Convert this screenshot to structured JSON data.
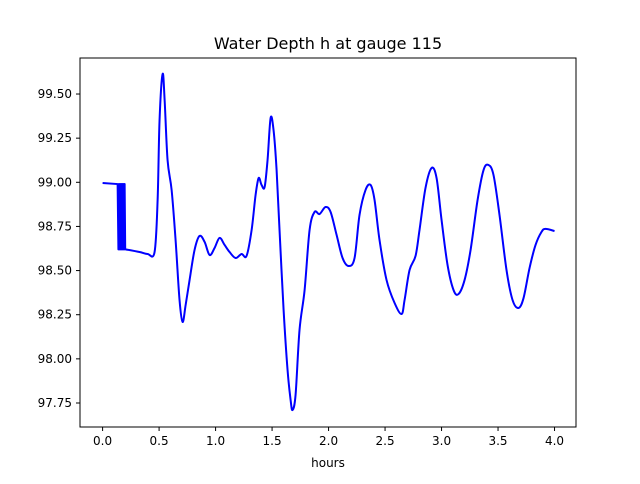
{
  "chart_data": {
    "type": "line",
    "title": "Water Depth h at gauge 115",
    "xlabel": "hours",
    "ylabel": "",
    "xlim": [
      -0.2,
      4.19
    ],
    "ylim": [
      97.614,
      99.704
    ],
    "grid": false,
    "xticks": [
      "0.0",
      "0.5",
      "1.0",
      "1.5",
      "2.0",
      "2.5",
      "3.0",
      "3.5",
      "4.0"
    ],
    "yticks": [
      "97.75",
      "98.00",
      "98.25",
      "98.50",
      "98.75",
      "99.00",
      "99.25",
      "99.50"
    ],
    "series": [
      {
        "name": "h",
        "color": "#0000ff",
        "x": [
          0,
          0.133,
          0.14,
          0.145,
          0.15,
          0.155,
          0.16,
          0.165,
          0.17,
          0.175,
          0.18,
          0.185,
          0.19,
          0.195,
          0.2,
          0.204,
          0.327,
          0.398,
          0.46,
          0.487,
          0.504,
          0.531,
          0.549,
          0.575,
          0.611,
          0.646,
          0.681,
          0.708,
          0.735,
          0.77,
          0.814,
          0.858,
          0.903,
          0.947,
          0.991,
          1.035,
          1.08,
          1.124,
          1.177,
          1.23,
          1.274,
          1.319,
          1.354,
          1.381,
          1.407,
          1.434,
          1.46,
          1.487,
          1.513,
          1.54,
          1.566,
          1.602,
          1.637,
          1.664,
          1.681,
          1.708,
          1.743,
          1.788,
          1.832,
          1.876,
          1.92,
          1.973,
          2.018,
          2.071,
          2.124,
          2.177,
          2.23,
          2.274,
          2.327,
          2.372,
          2.407,
          2.451,
          2.513,
          2.584,
          2.646,
          2.673,
          2.717,
          2.77,
          2.805,
          2.858,
          2.912,
          2.956,
          3.0,
          3.053,
          3.106,
          3.15,
          3.204,
          3.257,
          3.319,
          3.372,
          3.416,
          3.46,
          3.513,
          3.575,
          3.628,
          3.681,
          3.726,
          3.779,
          3.832,
          3.885,
          3.92,
          4.0
        ],
        "y": [
          98.996,
          98.99,
          98.62,
          98.99,
          98.62,
          98.99,
          98.62,
          98.99,
          98.62,
          98.99,
          98.62,
          98.99,
          98.62,
          98.99,
          98.62,
          98.62,
          98.605,
          98.594,
          98.605,
          98.9,
          99.35,
          99.613,
          99.466,
          99.126,
          98.956,
          98.673,
          98.333,
          98.209,
          98.305,
          98.447,
          98.617,
          98.696,
          98.662,
          98.588,
          98.628,
          98.685,
          98.645,
          98.605,
          98.571,
          98.594,
          98.583,
          98.73,
          98.928,
          99.024,
          98.985,
          98.973,
          99.126,
          99.364,
          99.296,
          99.07,
          98.73,
          98.277,
          97.937,
          97.767,
          97.71,
          97.796,
          98.164,
          98.39,
          98.73,
          98.832,
          98.82,
          98.86,
          98.832,
          98.702,
          98.571,
          98.526,
          98.571,
          98.815,
          98.956,
          98.985,
          98.9,
          98.673,
          98.447,
          98.317,
          98.254,
          98.334,
          98.503,
          98.583,
          98.73,
          98.968,
          99.081,
          99.024,
          98.787,
          98.532,
          98.39,
          98.367,
          98.447,
          98.617,
          98.9,
          99.07,
          99.098,
          99.041,
          98.815,
          98.503,
          98.334,
          98.288,
          98.345,
          98.515,
          98.645,
          98.719,
          98.736,
          98.724
        ]
      }
    ]
  }
}
